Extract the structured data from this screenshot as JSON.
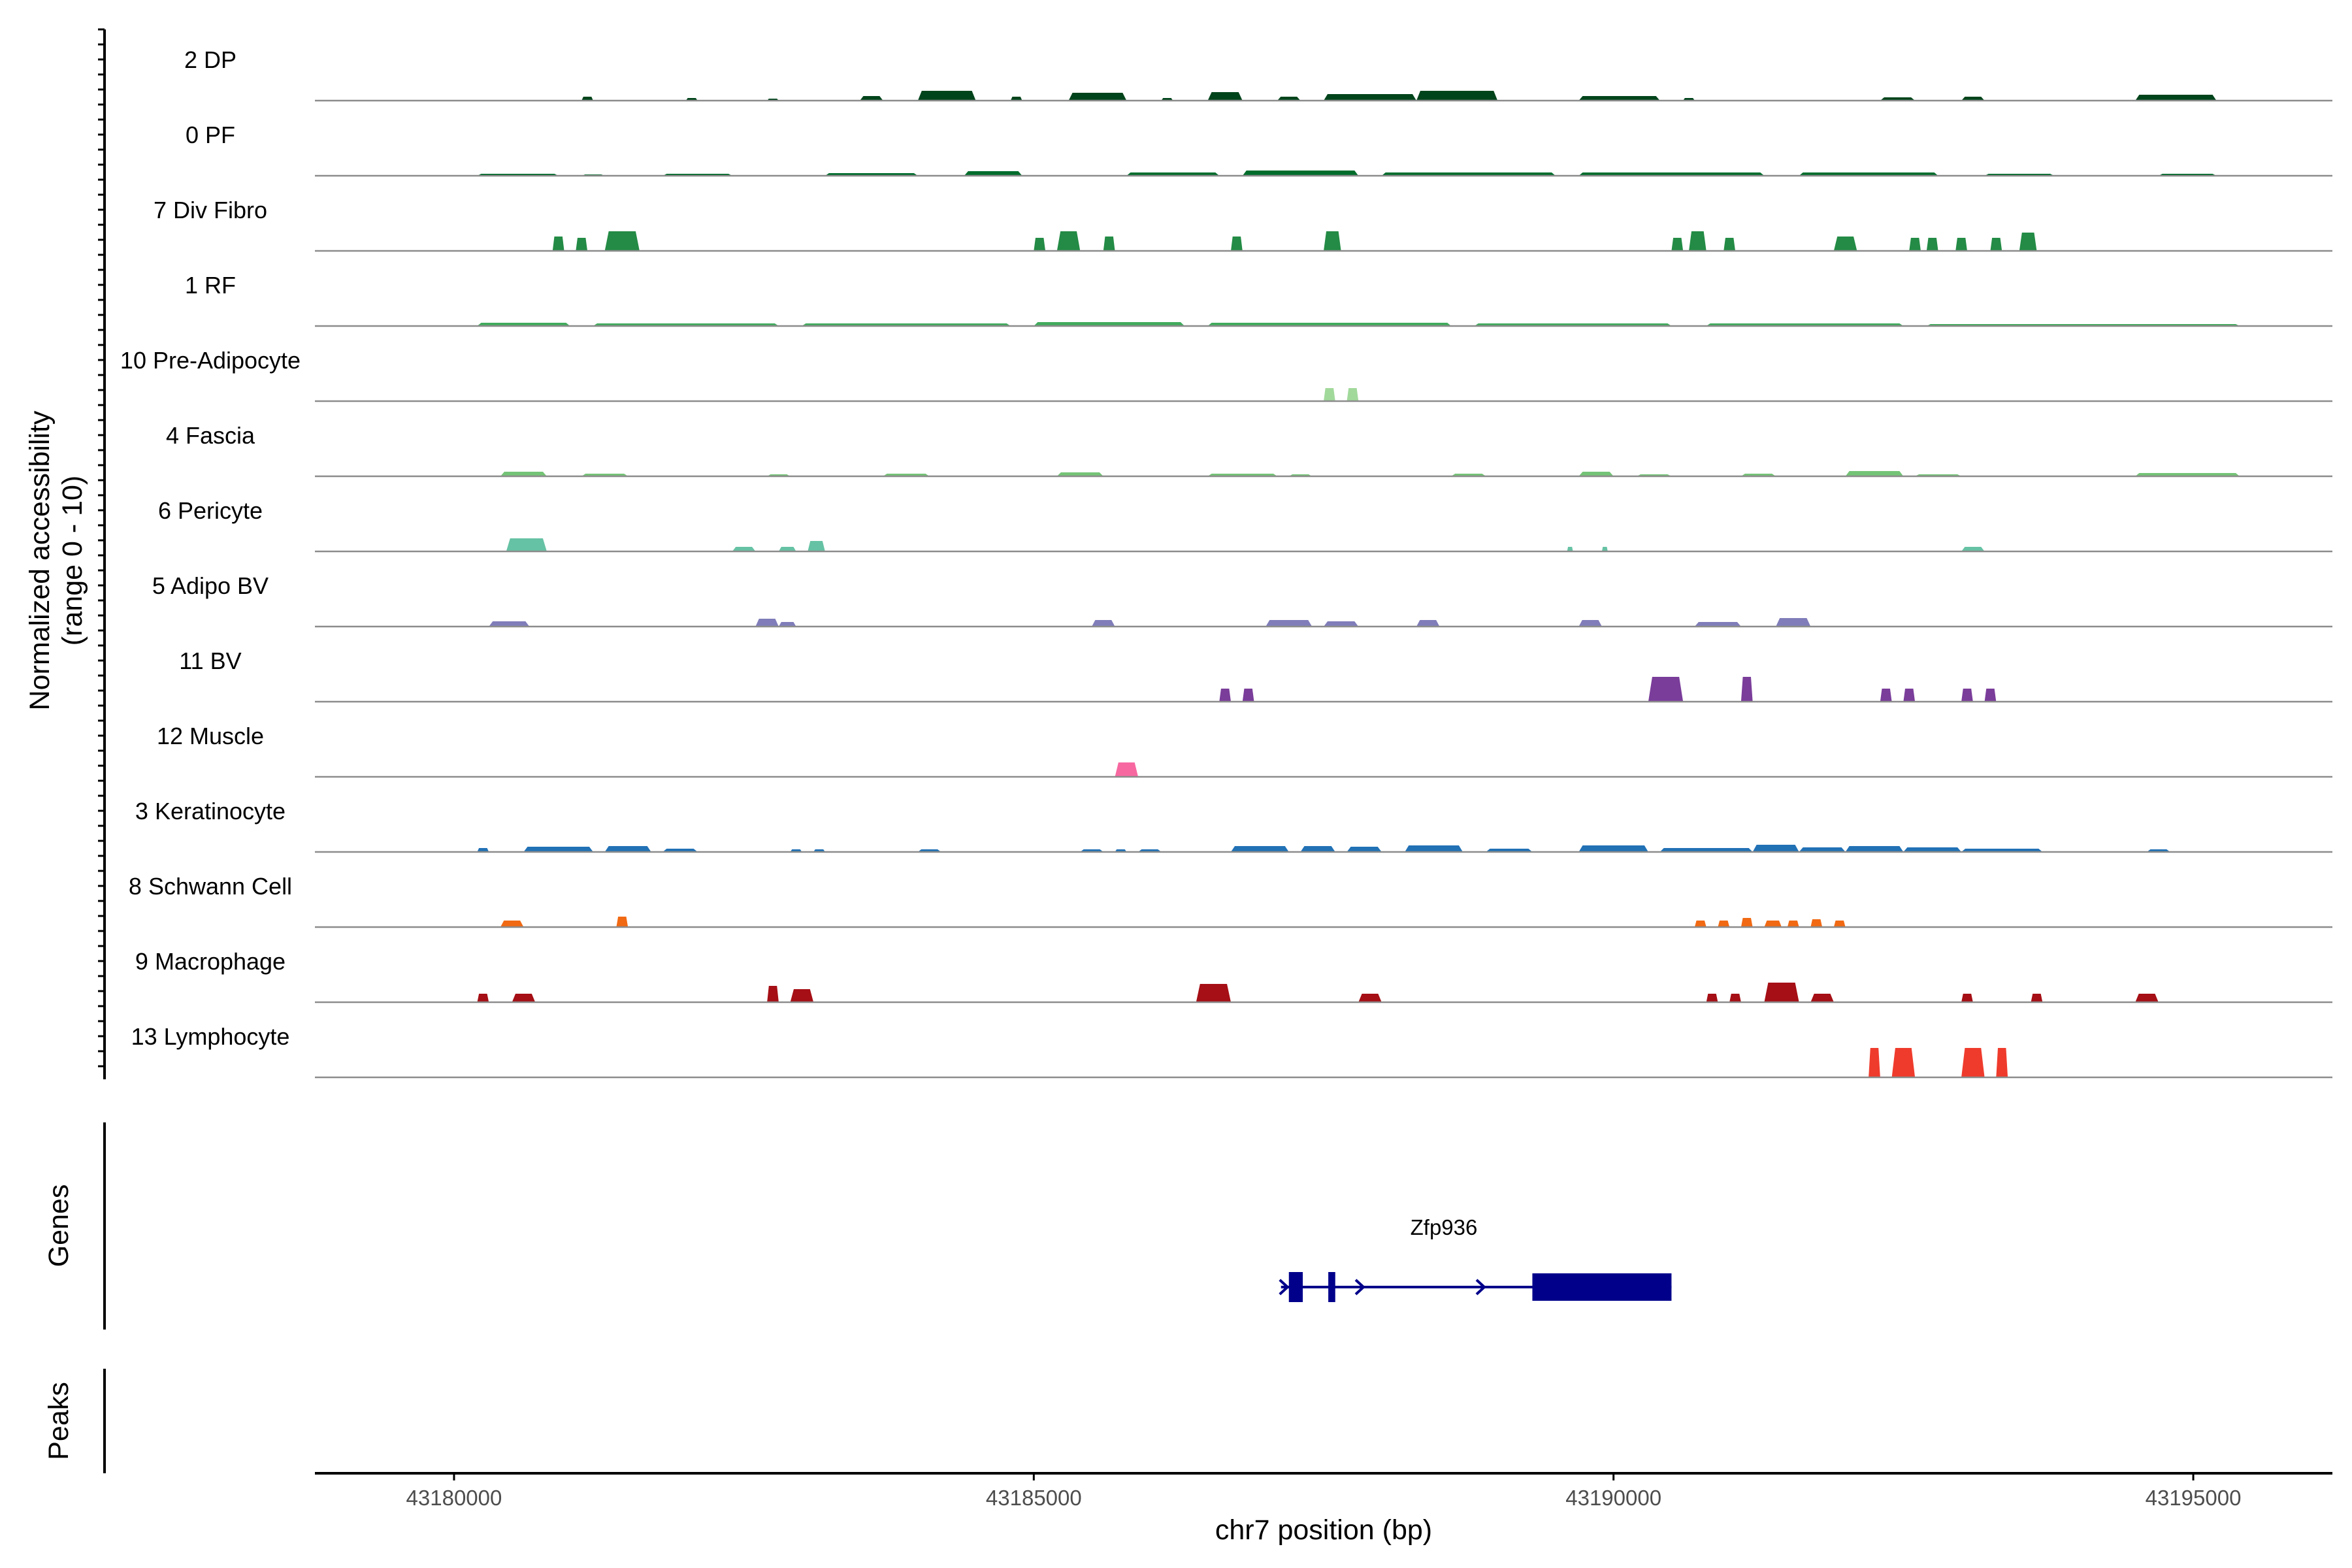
{
  "chart_data": {
    "type": "area",
    "title": "",
    "xlabel": "chr7 position (bp)",
    "ylabel_line1": "Normalized accessibility",
    "ylabel_line2": "(range 0 - 10)",
    "genes_label": "Genes",
    "peaks_label": "Peaks",
    "xlim": [
      43178800,
      43196200
    ],
    "ylim": [
      0,
      10
    ],
    "x_ticks": [
      {
        "value": 43180000,
        "label": "43180000"
      },
      {
        "value": 43185000,
        "label": "43185000"
      },
      {
        "value": 43190000,
        "label": "43190000"
      },
      {
        "value": 43195000,
        "label": "43195000"
      }
    ],
    "tracks": [
      {
        "name": "2 DP",
        "color": "#00441b",
        "peaks": [
          [
            43181100,
            43181200,
            0.6
          ],
          [
            43182000,
            43182100,
            0.4
          ],
          [
            43182700,
            43182800,
            0.3
          ],
          [
            43183500,
            43183700,
            0.7
          ],
          [
            43184000,
            43184500,
            1.5
          ],
          [
            43184800,
            43184900,
            0.6
          ],
          [
            43185300,
            43185800,
            1.2
          ],
          [
            43186100,
            43186200,
            0.4
          ],
          [
            43186500,
            43186800,
            1.3
          ],
          [
            43187100,
            43187300,
            0.6
          ],
          [
            43187500,
            43188300,
            1.0
          ],
          [
            43188300,
            43189000,
            1.5
          ],
          [
            43189700,
            43190400,
            0.7
          ],
          [
            43190600,
            43190700,
            0.4
          ],
          [
            43192300,
            43192600,
            0.5
          ],
          [
            43193000,
            43193200,
            0.6
          ],
          [
            43194500,
            43195200,
            0.9
          ]
        ]
      },
      {
        "name": "0 PF",
        "color": "#006d2c",
        "peaks": [
          [
            43180200,
            43180900,
            0.3
          ],
          [
            43181100,
            43181300,
            0.2
          ],
          [
            43181800,
            43182400,
            0.3
          ],
          [
            43183200,
            43184000,
            0.4
          ],
          [
            43184400,
            43184900,
            0.7
          ],
          [
            43185800,
            43186600,
            0.5
          ],
          [
            43186800,
            43187800,
            0.8
          ],
          [
            43188000,
            43189500,
            0.5
          ],
          [
            43189700,
            43191300,
            0.5
          ],
          [
            43191600,
            43192800,
            0.5
          ],
          [
            43193200,
            43193800,
            0.3
          ],
          [
            43194700,
            43195200,
            0.3
          ]
        ]
      },
      {
        "name": "7 Div Fibro",
        "color": "#238b45",
        "peaks": [
          [
            43180850,
            43180950,
            2.2
          ],
          [
            43181050,
            43181150,
            2.0
          ],
          [
            43181300,
            43181600,
            3.0
          ],
          [
            43185000,
            43185100,
            2.0
          ],
          [
            43185200,
            43185400,
            3.0
          ],
          [
            43185600,
            43185700,
            2.2
          ],
          [
            43186700,
            43186800,
            2.2
          ],
          [
            43187500,
            43187650,
            3.0
          ],
          [
            43190500,
            43190600,
            2.0
          ],
          [
            43190650,
            43190800,
            3.0
          ],
          [
            43190950,
            43191050,
            2.0
          ],
          [
            43191900,
            43192100,
            2.2
          ],
          [
            43192550,
            43192650,
            2.0
          ],
          [
            43192700,
            43192800,
            2.0
          ],
          [
            43192950,
            43193050,
            2.0
          ],
          [
            43193250,
            43193350,
            2.0
          ],
          [
            43193500,
            43193650,
            2.8
          ]
        ]
      },
      {
        "name": "1 RF",
        "color": "#41ab5d",
        "peaks": [
          [
            43180200,
            43181000,
            0.5
          ],
          [
            43181200,
            43182800,
            0.4
          ],
          [
            43183000,
            43184800,
            0.4
          ],
          [
            43185000,
            43186300,
            0.6
          ],
          [
            43186500,
            43188600,
            0.5
          ],
          [
            43188800,
            43190500,
            0.4
          ],
          [
            43190800,
            43192500,
            0.4
          ],
          [
            43192700,
            43195400,
            0.3
          ]
        ]
      },
      {
        "name": "10 Pre-Adipocyte",
        "color": "#a1d99b",
        "peaks": [
          [
            43187500,
            43187600,
            2.0
          ],
          [
            43187700,
            43187800,
            2.0
          ]
        ]
      },
      {
        "name": "4 Fascia",
        "color": "#74c476",
        "peaks": [
          [
            43180400,
            43180800,
            0.7
          ],
          [
            43181100,
            43181500,
            0.4
          ],
          [
            43182700,
            43182900,
            0.3
          ],
          [
            43183700,
            43184100,
            0.4
          ],
          [
            43185200,
            43185600,
            0.6
          ],
          [
            43186500,
            43187100,
            0.4
          ],
          [
            43187200,
            43187400,
            0.3
          ],
          [
            43188600,
            43188900,
            0.4
          ],
          [
            43189700,
            43190000,
            0.7
          ],
          [
            43190200,
            43190500,
            0.3
          ],
          [
            43191100,
            43191400,
            0.4
          ],
          [
            43192000,
            43192500,
            0.8
          ],
          [
            43192600,
            43193000,
            0.3
          ],
          [
            43194500,
            43195400,
            0.5
          ]
        ]
      },
      {
        "name": "6 Pericyte",
        "color": "#66c2a4",
        "peaks": [
          [
            43180450,
            43180800,
            2.0
          ],
          [
            43182400,
            43182600,
            0.7
          ],
          [
            43182800,
            43182950,
            0.7
          ],
          [
            43183050,
            43183200,
            1.6
          ],
          [
            43189600,
            43189650,
            0.7
          ],
          [
            43189900,
            43189950,
            0.7
          ],
          [
            43193000,
            43193200,
            0.7
          ]
        ]
      },
      {
        "name": "5 Adipo BV",
        "color": "#807dba",
        "peaks": [
          [
            43180300,
            43180650,
            0.8
          ],
          [
            43182600,
            43182800,
            1.2
          ],
          [
            43182800,
            43182950,
            0.7
          ],
          [
            43185500,
            43185700,
            1.0
          ],
          [
            43187000,
            43187400,
            1.0
          ],
          [
            43187500,
            43187800,
            0.8
          ],
          [
            43188300,
            43188500,
            1.0
          ],
          [
            43189700,
            43189900,
            1.0
          ],
          [
            43190700,
            43191100,
            0.7
          ],
          [
            43191400,
            43191700,
            1.3
          ]
        ]
      },
      {
        "name": "11 BV",
        "color": "#7a3d9a",
        "peaks": [
          [
            43186600,
            43186700,
            2.0
          ],
          [
            43186800,
            43186900,
            2.0
          ],
          [
            43190300,
            43190600,
            3.8
          ],
          [
            43191100,
            43191200,
            3.8
          ],
          [
            43192300,
            43192400,
            2.0
          ],
          [
            43192500,
            43192600,
            2.0
          ],
          [
            43193000,
            43193100,
            2.0
          ],
          [
            43193200,
            43193300,
            2.0
          ]
        ]
      },
      {
        "name": "12 Muscle",
        "color": "#f768a1",
        "peaks": [
          [
            43185700,
            43185900,
            2.2
          ]
        ]
      },
      {
        "name": "3 Keratinocyte",
        "color": "#2171b5",
        "peaks": [
          [
            43180200,
            43180300,
            0.6
          ],
          [
            43180600,
            43181200,
            0.8
          ],
          [
            43181300,
            43181700,
            0.9
          ],
          [
            43181800,
            43182100,
            0.5
          ],
          [
            43182900,
            43183000,
            0.4
          ],
          [
            43183100,
            43183200,
            0.4
          ],
          [
            43184000,
            43184200,
            0.4
          ],
          [
            43185400,
            43185600,
            0.4
          ],
          [
            43185700,
            43185800,
            0.4
          ],
          [
            43185900,
            43186100,
            0.4
          ],
          [
            43186700,
            43187200,
            0.9
          ],
          [
            43187300,
            43187600,
            0.9
          ],
          [
            43187700,
            43188000,
            0.8
          ],
          [
            43188200,
            43188700,
            1.0
          ],
          [
            43188900,
            43189300,
            0.5
          ],
          [
            43189700,
            43190300,
            1.0
          ],
          [
            43190400,
            43191200,
            0.6
          ],
          [
            43191200,
            43191600,
            1.1
          ],
          [
            43191600,
            43192000,
            0.7
          ],
          [
            43192000,
            43192500,
            0.9
          ],
          [
            43192500,
            43193000,
            0.7
          ],
          [
            43193000,
            43193700,
            0.5
          ],
          [
            43194600,
            43194800,
            0.4
          ]
        ]
      },
      {
        "name": "8 Schwann Cell",
        "color": "#f16913",
        "peaks": [
          [
            43180400,
            43180600,
            1.0
          ],
          [
            43181400,
            43181500,
            1.6
          ],
          [
            43190700,
            43190800,
            1.0
          ],
          [
            43190900,
            43191000,
            1.0
          ],
          [
            43191100,
            43191200,
            1.4
          ],
          [
            43191300,
            43191450,
            1.0
          ],
          [
            43191500,
            43191600,
            1.0
          ],
          [
            43191700,
            43191800,
            1.2
          ],
          [
            43191900,
            43192000,
            1.0
          ]
        ]
      },
      {
        "name": "9 Macrophage",
        "color": "#a50f15",
        "peaks": [
          [
            43180200,
            43180300,
            1.3
          ],
          [
            43180500,
            43180700,
            1.3
          ],
          [
            43182700,
            43182800,
            2.5
          ],
          [
            43182900,
            43183100,
            2.0
          ],
          [
            43186400,
            43186700,
            2.8
          ],
          [
            43187800,
            43188000,
            1.3
          ],
          [
            43190800,
            43190900,
            1.3
          ],
          [
            43191000,
            43191100,
            1.3
          ],
          [
            43191300,
            43191600,
            3.0
          ],
          [
            43191700,
            43191900,
            1.3
          ],
          [
            43193000,
            43193100,
            1.3
          ],
          [
            43193600,
            43193700,
            1.3
          ],
          [
            43194500,
            43194700,
            1.3
          ]
        ]
      },
      {
        "name": "13 Lymphocyte",
        "color": "#ef3b2c",
        "peaks": [
          [
            43192200,
            43192300,
            4.5
          ],
          [
            43192400,
            43192600,
            4.5
          ],
          [
            43193000,
            43193200,
            4.5
          ],
          [
            43193300,
            43193400,
            4.5
          ]
        ]
      }
    ],
    "gene": {
      "name": "Zfp936",
      "color": "#00008b",
      "start": 43187200,
      "end": 43190500,
      "exons": [
        [
          43187200,
          43187320
        ],
        [
          43187540,
          43187600
        ],
        [
          43189300,
          43190500
        ]
      ],
      "strand": "+"
    }
  }
}
